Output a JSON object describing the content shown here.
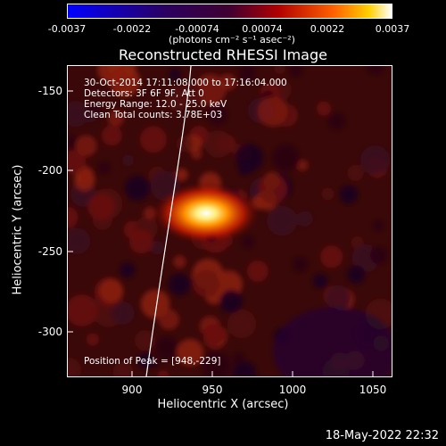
{
  "colorbar": {
    "ticks": [
      "-0.0037",
      "-0.0022",
      "-0.00074",
      "0.00074",
      "0.0022",
      "0.0037"
    ],
    "units": "(photons cm⁻² s⁻¹ asec⁻²)"
  },
  "plot": {
    "title": "Reconstructed RHESSI Image",
    "annotations": {
      "time": "30-Oct-2014 17:11:08.000 to 17:16:04.000",
      "detectors": "Detectors: 3F 6F 9F, Att 0",
      "energy": "Energy Range: 12.0 - 25.0 keV",
      "clean": "Clean     Total counts: 3.78E+03",
      "peak": "Position of Peak = [948,-229]"
    },
    "y_ticks": [
      "-150",
      "-200",
      "-250",
      "-300"
    ],
    "x_ticks": [
      "900",
      "950",
      "1000",
      "1050"
    ],
    "ylabel": "Heliocentric Y (arcsec)",
    "xlabel": "Heliocentric X (arcsec)"
  },
  "timestamp": "18-May-2022 22:32",
  "colors": {
    "background": "#000000",
    "text": "#ffffff",
    "limb": "#ffffff"
  }
}
